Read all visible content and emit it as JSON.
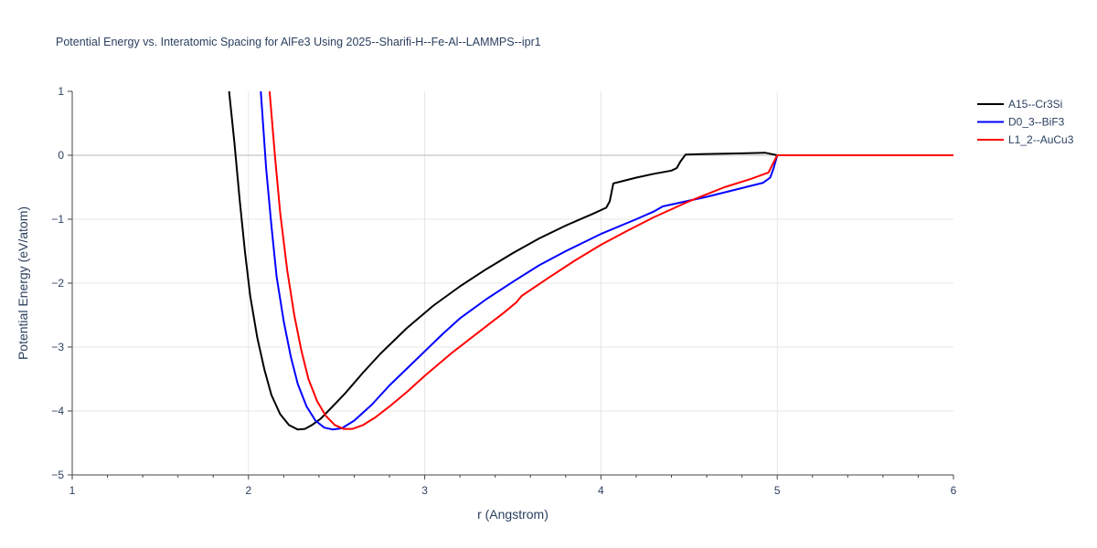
{
  "chart_data": {
    "type": "line",
    "title": "Potential Energy vs. Interatomic Spacing for AlFe3 Using 2025--Sharifi-H--Fe-Al--LAMMPS--ipr1",
    "xlabel": "r (Angstrom)",
    "ylabel": "Potential Energy (eV/atom)",
    "xlim": [
      1,
      6
    ],
    "ylim": [
      -5,
      1
    ],
    "xticks": [
      "1",
      "2",
      "3",
      "4",
      "5",
      "6"
    ],
    "yticks": [
      "1",
      "0",
      "−1",
      "−2",
      "−3",
      "−4",
      "−5"
    ],
    "grid": true,
    "legend_position": "top-right",
    "series": [
      {
        "name": "A15--Cr3Si",
        "color": "#000000",
        "x": [
          1.89,
          1.92,
          1.95,
          1.98,
          2.01,
          2.05,
          2.09,
          2.13,
          2.18,
          2.23,
          2.28,
          2.32,
          2.36,
          2.41,
          2.47,
          2.55,
          2.65,
          2.75,
          2.9,
          3.05,
          3.2,
          3.35,
          3.5,
          3.65,
          3.8,
          3.95,
          4.03,
          4.05,
          4.07,
          4.1,
          4.2,
          4.3,
          4.4,
          4.43,
          4.45,
          4.48,
          4.6,
          4.8,
          4.93,
          5.0,
          5.5,
          6.0
        ],
        "y": [
          1.0,
          0.2,
          -0.7,
          -1.5,
          -2.2,
          -2.85,
          -3.35,
          -3.75,
          -4.05,
          -4.22,
          -4.29,
          -4.28,
          -4.22,
          -4.12,
          -3.95,
          -3.72,
          -3.4,
          -3.1,
          -2.7,
          -2.35,
          -2.05,
          -1.78,
          -1.53,
          -1.3,
          -1.1,
          -0.92,
          -0.82,
          -0.72,
          -0.44,
          -0.42,
          -0.35,
          -0.29,
          -0.24,
          -0.2,
          -0.1,
          0.01,
          0.02,
          0.03,
          0.04,
          0.0,
          0.0,
          0.0
        ]
      },
      {
        "name": "D0_3--BiF3",
        "color": "#0000ff",
        "x": [
          2.07,
          2.1,
          2.13,
          2.16,
          2.2,
          2.24,
          2.28,
          2.33,
          2.38,
          2.43,
          2.48,
          2.53,
          2.6,
          2.7,
          2.8,
          2.95,
          3.1,
          3.2,
          3.35,
          3.5,
          3.65,
          3.8,
          4.0,
          4.2,
          4.3,
          4.35,
          4.6,
          4.92,
          4.96,
          4.98,
          5.0,
          5.5,
          6.0
        ],
        "y": [
          1.0,
          -0.2,
          -1.1,
          -1.9,
          -2.6,
          -3.15,
          -3.58,
          -3.93,
          -4.15,
          -4.26,
          -4.29,
          -4.27,
          -4.15,
          -3.9,
          -3.6,
          -3.2,
          -2.8,
          -2.55,
          -2.25,
          -1.98,
          -1.72,
          -1.5,
          -1.23,
          -1.0,
          -0.88,
          -0.8,
          -0.65,
          -0.43,
          -0.35,
          -0.2,
          0.0,
          0.0,
          0.0
        ]
      },
      {
        "name": "L1_2--AuCu3",
        "color": "#ff0000",
        "x": [
          2.12,
          2.15,
          2.18,
          2.22,
          2.26,
          2.3,
          2.34,
          2.39,
          2.44,
          2.49,
          2.54,
          2.59,
          2.65,
          2.72,
          2.8,
          2.9,
          3.0,
          3.15,
          3.3,
          3.45,
          3.52,
          3.55,
          3.7,
          3.85,
          4.0,
          4.15,
          4.3,
          4.5,
          4.7,
          4.85,
          4.95,
          5.0,
          5.5,
          6.0
        ],
        "y": [
          1.0,
          0.0,
          -0.9,
          -1.8,
          -2.5,
          -3.05,
          -3.5,
          -3.85,
          -4.08,
          -4.22,
          -4.28,
          -4.28,
          -4.22,
          -4.1,
          -3.93,
          -3.7,
          -3.45,
          -3.1,
          -2.78,
          -2.46,
          -2.3,
          -2.2,
          -1.92,
          -1.65,
          -1.4,
          -1.18,
          -0.97,
          -0.72,
          -0.5,
          -0.37,
          -0.27,
          0.0,
          0.0,
          0.0
        ]
      }
    ]
  }
}
